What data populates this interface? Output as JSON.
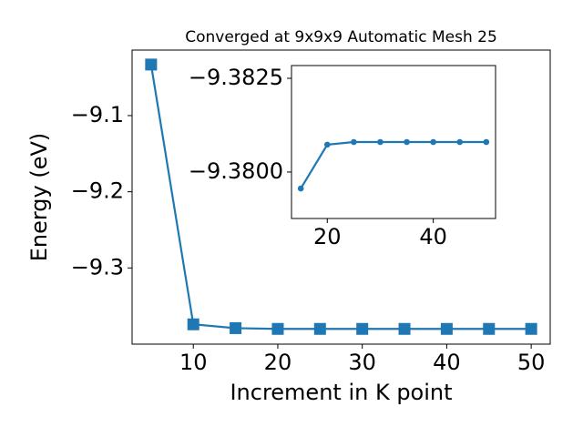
{
  "chart_data": [
    {
      "type": "line",
      "title": "Converged at 9x9x9 Automatic Mesh 25",
      "xlabel": "Increment in K point",
      "ylabel": "Energy (eV)",
      "x": [
        5,
        10,
        15,
        20,
        25,
        30,
        35,
        40,
        45,
        50
      ],
      "series": [
        {
          "color": "#1f77b4",
          "marker": "square",
          "values": [
            -9.033,
            -9.374,
            -9.379,
            -9.38,
            -9.38,
            -9.38,
            -9.38,
            -9.38,
            -9.38,
            -9.38
          ]
        }
      ],
      "xlim": [
        2.75,
        52.25
      ],
      "ylim": [
        -9.4,
        -9.014
      ],
      "xticks": [
        10,
        20,
        30,
        40,
        50
      ],
      "yticks": [
        {
          "value": -9.1,
          "label": "−9.1"
        },
        {
          "value": -9.2,
          "label": "−9.2"
        },
        {
          "value": -9.3,
          "label": "−9.3"
        }
      ]
    },
    {
      "type": "line",
      "x": [
        15,
        20,
        25,
        30,
        35,
        40,
        45,
        50
      ],
      "series": [
        {
          "color": "#1f77b4",
          "marker": "circle",
          "values": [
            -9.37956,
            -9.38073,
            -9.3808,
            -9.3808,
            -9.3808,
            -9.3808,
            -9.3808,
            -9.3808
          ]
        }
      ],
      "xlim": [
        13.25,
        51.75
      ],
      "ylim": [
        -9.37876,
        -9.38284
      ],
      "xticks": [
        20,
        40
      ],
      "yticks": [
        {
          "value": -9.3825,
          "label": "−9.3825"
        },
        {
          "value": -9.38,
          "label": "−9.3800"
        }
      ]
    }
  ]
}
